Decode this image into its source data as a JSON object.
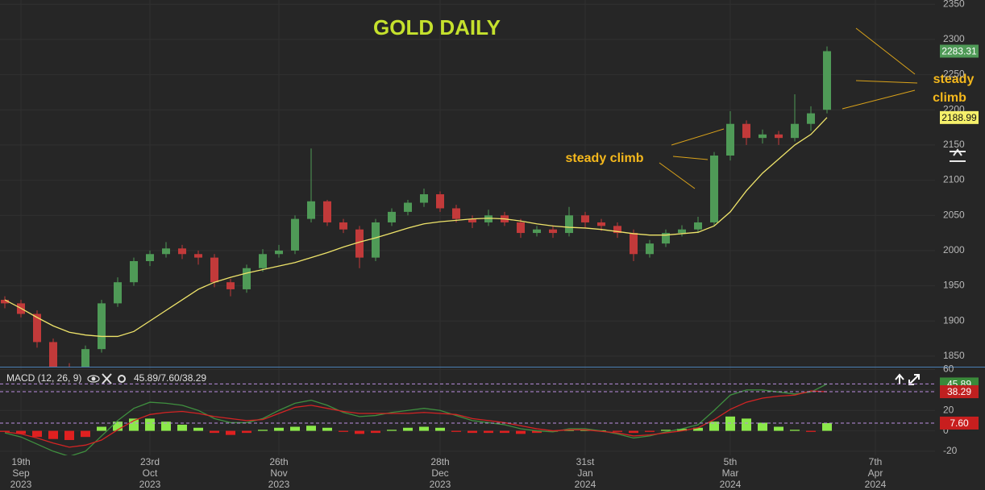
{
  "chart_data": [
    {
      "type": "candlestick",
      "title": "GOLD DAILY",
      "annotations": [
        "steady climb",
        "steady",
        "climb"
      ],
      "categories": [
        null,
        "19th Sep 2023",
        null,
        null,
        null,
        null,
        null,
        null,
        null,
        "23rd Oct 2023",
        null,
        null,
        null,
        null,
        null,
        null,
        null,
        "26th Nov 2023",
        null,
        null,
        null,
        null,
        null,
        null,
        null,
        null,
        null,
        "28th Dec 2023",
        null,
        null,
        null,
        null,
        null,
        null,
        null,
        null,
        "31st Jan 2024",
        null,
        null,
        null,
        null,
        null,
        null,
        null,
        null,
        "5th Mar 2024",
        null,
        null,
        null,
        null,
        null,
        null,
        null,
        null,
        "7th Apr 2024",
        null,
        null,
        null
      ],
      "open": [
        1930,
        1925,
        1910,
        1870,
        1835,
        1825,
        1860,
        1925,
        1955,
        1985,
        1995,
        2003,
        1995,
        1990,
        1955,
        1945,
        1975,
        1995,
        2000,
        2045,
        2070,
        2040,
        2030,
        1990,
        2040,
        2055,
        2068,
        2080,
        2060,
        2045,
        2040,
        2050,
        2040,
        2025,
        2030,
        2025,
        2050,
        2040,
        2035,
        2025,
        1995,
        2010,
        2025,
        2030,
        2040,
        2135,
        2180,
        2160,
        2165,
        2160,
        2180,
        2200,
        null,
        null,
        null,
        null,
        null,
        null
      ],
      "high": [
        1935,
        1930,
        1915,
        1875,
        1840,
        1865,
        1930,
        1962,
        1990,
        2000,
        2012,
        2008,
        2000,
        1995,
        1960,
        1980,
        2002,
        2008,
        2050,
        2145,
        2072,
        2045,
        2035,
        2045,
        2060,
        2072,
        2088,
        2084,
        2065,
        2050,
        2058,
        2055,
        2045,
        2035,
        2036,
        2062,
        2055,
        2045,
        2040,
        2030,
        2015,
        2030,
        2036,
        2048,
        2140,
        2198,
        2185,
        2172,
        2170,
        2222,
        2205,
        2290,
        null,
        null,
        null,
        null,
        null,
        null
      ],
      "low": [
        1918,
        1905,
        1862,
        1825,
        1815,
        1820,
        1855,
        1920,
        1950,
        1978,
        1990,
        1988,
        1980,
        1948,
        1935,
        1940,
        1970,
        1990,
        1995,
        2040,
        2035,
        2025,
        1975,
        1985,
        2035,
        2050,
        2062,
        2055,
        2040,
        2032,
        2035,
        2035,
        2018,
        2020,
        2018,
        2020,
        2032,
        2028,
        2018,
        1985,
        1990,
        2005,
        2020,
        2025,
        2035,
        2128,
        2150,
        2152,
        2150,
        2155,
        2170,
        2195,
        null,
        null,
        null,
        null,
        null,
        null
      ],
      "close": [
        1925,
        1910,
        1870,
        1835,
        1825,
        1860,
        1925,
        1955,
        1985,
        1995,
        2003,
        1995,
        1990,
        1955,
        1945,
        1975,
        1995,
        2000,
        2045,
        2070,
        2040,
        2030,
        1990,
        2040,
        2055,
        2068,
        2080,
        2060,
        2045,
        2040,
        2050,
        2040,
        2025,
        2030,
        2025,
        2050,
        2040,
        2035,
        2025,
        1995,
        2010,
        2025,
        2030,
        2040,
        2135,
        2180,
        2160,
        2165,
        2160,
        2180,
        2195,
        2283.31,
        null,
        null,
        null,
        null,
        null,
        null
      ],
      "up_color": "#4f9a57",
      "down_color": "#c23a3a",
      "overlay": {
        "color": "#efe46a",
        "values": [
          1930,
          1918,
          1905,
          1893,
          1884,
          1880,
          1878,
          1878,
          1885,
          1900,
          1915,
          1930,
          1945,
          1955,
          1962,
          1968,
          1973,
          1978,
          1983,
          1990,
          1997,
          2005,
          2012,
          2018,
          2025,
          2032,
          2038,
          2041,
          2043,
          2045,
          2046,
          2045,
          2042,
          2038,
          2035,
          2033,
          2032,
          2030,
          2027,
          2024,
          2022,
          2022,
          2024,
          2026,
          2035,
          2055,
          2085,
          2110,
          2130,
          2150,
          2165,
          2188.99,
          null,
          null,
          null,
          null,
          null,
          null
        ]
      },
      "ylim": [
        1835,
        2356
      ],
      "yticks": [
        1850,
        1900,
        1950,
        2000,
        2050,
        2100,
        2150,
        2200,
        2250,
        2300,
        2350
      ],
      "grid": true
    },
    {
      "type": "macd",
      "title": "MACD (12, 26, 9)",
      "readout": "45.89/7.60/38.29",
      "macd": {
        "color": "#3f8f3f",
        "values": [
          -2,
          -6,
          -13,
          -20,
          -25,
          -20,
          -5,
          10,
          22,
          28,
          27,
          25,
          20,
          12,
          8,
          8,
          12,
          20,
          27,
          30,
          25,
          18,
          14,
          15,
          18,
          20,
          22,
          20,
          15,
          10,
          8,
          6,
          2,
          0,
          -1,
          2,
          2,
          0,
          -3,
          -7,
          -5,
          -1,
          2,
          6,
          20,
          35,
          40,
          40,
          38,
          36,
          38,
          45.89,
          null,
          null,
          null,
          null,
          null,
          null
        ]
      },
      "signal": {
        "color": "#d42424",
        "values": [
          -1,
          -3,
          -7,
          -12,
          -16,
          -14,
          -9,
          1,
          10,
          16,
          18,
          19,
          17,
          14,
          12,
          10,
          11,
          17,
          23,
          25,
          22,
          19,
          17,
          17,
          17,
          17,
          18,
          17,
          16,
          12,
          10,
          8,
          5,
          2,
          0,
          1,
          1,
          -0.5,
          -2,
          -5,
          -4,
          -2,
          0,
          3,
          11,
          21,
          28,
          32,
          34,
          35,
          39,
          38.29,
          null,
          null,
          null,
          null,
          null,
          null
        ]
      },
      "histogram": {
        "up_color": "#8be84a",
        "down_color": "#e02020",
        "values": [
          -1,
          -3,
          -6,
          -8,
          -9,
          -6,
          4,
          9,
          12,
          12,
          9,
          6,
          3,
          -2,
          -4,
          -2,
          1,
          3,
          4,
          5,
          3,
          -1,
          -3,
          -2,
          1,
          3,
          4,
          3,
          -1,
          -2,
          -2,
          -2,
          -3,
          -2,
          -1,
          1,
          1,
          0.5,
          -1,
          -2,
          -1,
          1,
          2,
          3,
          9,
          14,
          12,
          8,
          4,
          1,
          -1,
          7.6,
          null,
          null,
          null,
          null,
          null,
          null
        ],
        "value_labels": [
          null,
          null,
          null,
          null,
          null,
          null,
          null,
          null,
          null,
          null,
          null,
          null,
          null,
          null,
          null,
          null,
          null,
          null,
          null,
          null,
          null,
          null,
          null,
          null,
          null,
          null,
          null,
          null,
          null,
          null,
          null,
          null,
          null,
          null,
          null,
          null,
          null,
          null,
          null,
          null,
          null,
          null,
          null,
          null,
          null,
          null,
          null,
          null,
          null,
          null,
          null,
          "7.60",
          null,
          null,
          null,
          null,
          null,
          null
        ]
      },
      "y2lim": [
        -24,
        62
      ],
      "y2ticks": [
        60,
        40,
        20,
        0,
        -20
      ]
    }
  ]
}
